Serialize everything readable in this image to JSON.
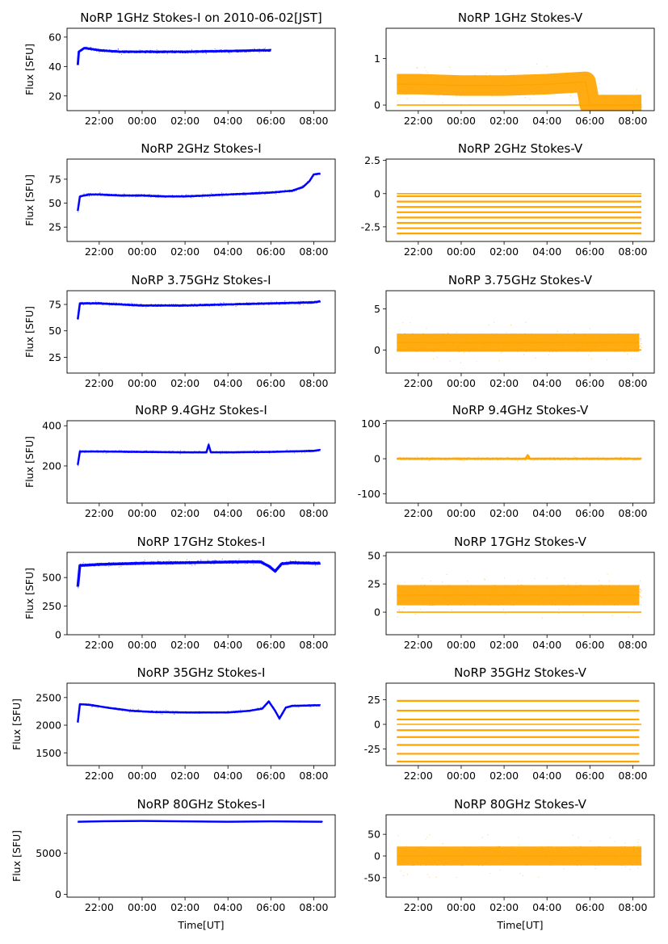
{
  "figure": {
    "xlabel": "Time[UT]",
    "time_ticks": [
      "22:00",
      "00:00",
      "02:00",
      "04:00",
      "06:00",
      "08:00"
    ]
  },
  "chart_data": [
    {
      "type": "scatter",
      "title": "NoRP 1GHz Stokes-I on 2010-06-02[JST]",
      "ylabel": "Flux [SFU]",
      "xlabel": "",
      "color": "#0000ff",
      "ylim": [
        10,
        66
      ],
      "yticks": [
        20,
        40,
        60
      ],
      "xlim": [
        20.5,
        33.0
      ],
      "x_range": [
        21.0,
        30.0
      ],
      "level": 50,
      "noise": 0.8,
      "series": [
        {
          "x": [
            21.0,
            21.05,
            21.3,
            21.6,
            22.0,
            22.5,
            23.0,
            24.0,
            26.0,
            28.0,
            29.5,
            30.0
          ],
          "y": [
            41,
            50,
            52.5,
            52,
            51,
            50.5,
            50,
            50,
            50,
            50.5,
            51,
            51
          ]
        }
      ],
      "zero_band": false,
      "offsets": []
    },
    {
      "type": "scatter",
      "title": "NoRP 1GHz Stokes-V",
      "ylabel": "",
      "xlabel": "",
      "color": "#ffa500",
      "ylim": [
        -0.12,
        1.65
      ],
      "yticks": [
        0,
        1
      ],
      "xlim": [
        20.5,
        33.0
      ],
      "x_range": [
        21.0,
        32.4
      ],
      "level": 0.42,
      "noise": 0.22,
      "series": [
        {
          "x": [
            21.0,
            22.0,
            24.0,
            26.0,
            28.0,
            29.8,
            30.0,
            32.4
          ],
          "y": [
            0.45,
            0.45,
            0.42,
            0.42,
            0.45,
            0.5,
            0,
            0
          ]
        }
      ],
      "zero_band": true,
      "offsets": []
    },
    {
      "type": "scatter",
      "title": "NoRP 2GHz Stokes-I",
      "ylabel": "Flux [SFU]",
      "xlabel": "",
      "color": "#0000ff",
      "ylim": [
        10,
        96
      ],
      "yticks": [
        25,
        50,
        75
      ],
      "xlim": [
        20.5,
        33.0
      ],
      "x_range": [
        21.0,
        32.3
      ],
      "level": 58,
      "noise": 1.0,
      "series": [
        {
          "x": [
            21.0,
            21.1,
            21.5,
            22.0,
            23.0,
            24.0,
            25.0,
            26.0,
            27.0,
            28.0,
            29.0,
            30.0,
            31.0,
            31.5,
            31.8,
            32.0,
            32.3
          ],
          "y": [
            42,
            57,
            59,
            59,
            58,
            58,
            57,
            57,
            58,
            59,
            60,
            61,
            63,
            67,
            73,
            80,
            81
          ]
        }
      ],
      "zero_band": false,
      "offsets": []
    },
    {
      "type": "scatter",
      "title": "NoRP 2GHz Stokes-V",
      "ylabel": "",
      "xlabel": "",
      "color": "#ffa500",
      "ylim": [
        -3.6,
        2.6
      ],
      "yticks": [
        -2.5,
        0.0,
        2.5
      ],
      "xlim": [
        20.5,
        33.0
      ],
      "x_range": [
        21.0,
        32.4
      ],
      "level": -1.3,
      "noise": 0,
      "series": [],
      "zero_band": true,
      "offsets": [
        -3.0,
        -2.6,
        -2.2,
        -1.8,
        -1.4,
        -1.0,
        -0.6,
        -0.2
      ]
    },
    {
      "type": "scatter",
      "title": "NoRP 3.75GHz Stokes-I",
      "ylabel": "Flux [SFU]",
      "xlabel": "",
      "color": "#0000ff",
      "ylim": [
        10,
        88
      ],
      "yticks": [
        25,
        50,
        75
      ],
      "xlim": [
        20.5,
        33.0
      ],
      "x_range": [
        21.0,
        32.3
      ],
      "level": 75,
      "noise": 1.0,
      "series": [
        {
          "x": [
            21.0,
            21.1,
            22.0,
            24.0,
            26.0,
            28.0,
            30.0,
            32.0,
            32.3
          ],
          "y": [
            61,
            76,
            76,
            74,
            74,
            75,
            76,
            77,
            78
          ]
        }
      ],
      "zero_band": false,
      "offsets": []
    },
    {
      "type": "scatter",
      "title": "NoRP 3.75GHz Stokes-V",
      "ylabel": "",
      "xlabel": "",
      "color": "#ffa500",
      "ylim": [
        -2.8,
        7.2
      ],
      "yticks": [
        0,
        5
      ],
      "xlim": [
        20.5,
        33.0
      ],
      "x_range": [
        21.0,
        32.4
      ],
      "level": 0.9,
      "noise": 1.1,
      "series": [
        {
          "x": [
            21.0,
            32.3
          ],
          "y": [
            0.9,
            0.9
          ]
        }
      ],
      "zero_band": true,
      "offsets": []
    },
    {
      "type": "scatter",
      "title": "NoRP 9.4GHz Stokes-I",
      "ylabel": "Flux [SFU]",
      "xlabel": "",
      "color": "#0000ff",
      "ylim": [
        15,
        425
      ],
      "yticks": [
        200,
        400
      ],
      "xlim": [
        20.5,
        33.0
      ],
      "x_range": [
        21.0,
        32.3
      ],
      "level": 270,
      "noise": 4,
      "series": [
        {
          "x": [
            21.0,
            21.1,
            22.0,
            24.0,
            26.0,
            27.0,
            27.1,
            27.2,
            28.0,
            30.0,
            32.0,
            32.3
          ],
          "y": [
            205,
            272,
            272,
            270,
            268,
            268,
            305,
            268,
            268,
            270,
            275,
            280
          ]
        }
      ],
      "zero_band": false,
      "offsets": []
    },
    {
      "type": "scatter",
      "title": "NoRP 9.4GHz Stokes-V",
      "ylabel": "",
      "xlabel": "",
      "color": "#ffa500",
      "ylim": [
        -126,
        108
      ],
      "yticks": [
        -100,
        0,
        100
      ],
      "xlim": [
        20.5,
        33.0
      ],
      "x_range": [
        21.0,
        32.4
      ],
      "level": 0,
      "noise": 3,
      "series": [
        {
          "x": [
            21.0,
            27.0,
            27.1,
            27.2,
            32.3
          ],
          "y": [
            0,
            0,
            10,
            0,
            0
          ]
        }
      ],
      "zero_band": true,
      "offsets": []
    },
    {
      "type": "scatter",
      "title": "NoRP 17GHz Stokes-I",
      "ylabel": "Flux [SFU]",
      "xlabel": "",
      "color": "#0000ff",
      "ylim": [
        0,
        720
      ],
      "yticks": [
        0,
        250,
        500
      ],
      "xlim": [
        20.5,
        33.0
      ],
      "x_range": [
        21.0,
        32.3
      ],
      "level": 620,
      "noise": 12,
      "series": [
        {
          "x": [
            21.0,
            21.1,
            22.0,
            24.0,
            26.0,
            28.0,
            29.5,
            29.9,
            30.2,
            30.5,
            31.0,
            32.0,
            32.3
          ],
          "y": [
            420,
            605,
            615,
            625,
            630,
            635,
            638,
            600,
            555,
            620,
            630,
            625,
            625
          ]
        }
      ],
      "zero_band": false,
      "offsets": []
    },
    {
      "type": "scatter",
      "title": "NoRP 17GHz Stokes-V",
      "ylabel": "",
      "xlabel": "",
      "color": "#ffa500",
      "ylim": [
        -20,
        53
      ],
      "yticks": [
        0,
        25,
        50
      ],
      "xlim": [
        20.5,
        33.0
      ],
      "x_range": [
        21.0,
        32.4
      ],
      "level": 15,
      "noise": 9,
      "series": [
        {
          "x": [
            21.0,
            32.3
          ],
          "y": [
            15,
            15
          ]
        }
      ],
      "zero_band": true,
      "offsets": []
    },
    {
      "type": "scatter",
      "title": "NoRP 35GHz Stokes-I",
      "ylabel": "Flux [SFU]",
      "xlabel": "",
      "color": "#0000ff",
      "ylim": [
        1270,
        2760
      ],
      "yticks": [
        1500,
        2000,
        2500
      ],
      "xlim": [
        20.5,
        33.0
      ],
      "x_range": [
        21.0,
        32.3
      ],
      "level": 2250,
      "noise": 15,
      "series": [
        {
          "x": [
            21.0,
            21.1,
            21.5,
            22.5,
            23.5,
            24.5,
            26.0,
            28.0,
            29.0,
            29.6,
            29.9,
            30.2,
            30.4,
            30.7,
            31.0,
            32.0,
            32.3
          ],
          "y": [
            2050,
            2380,
            2370,
            2310,
            2260,
            2240,
            2230,
            2230,
            2260,
            2300,
            2430,
            2260,
            2120,
            2320,
            2350,
            2360,
            2360
          ]
        }
      ],
      "zero_band": false,
      "offsets": []
    },
    {
      "type": "scatter",
      "title": "NoRP 35GHz Stokes-V",
      "ylabel": "",
      "xlabel": "",
      "color": "#ffa500",
      "ylim": [
        -42,
        42
      ],
      "yticks": [
        -25,
        0,
        25
      ],
      "xlim": [
        20.5,
        33.0
      ],
      "x_range": [
        21.0,
        32.3
      ],
      "level": 0,
      "noise": 0,
      "series": [],
      "zero_band": true,
      "offsets": [
        -38,
        -30,
        -21,
        -13,
        -6,
        5,
        14,
        24
      ]
    },
    {
      "type": "scatter",
      "title": "NoRP 80GHz Stokes-I",
      "ylabel": "Flux [SFU]",
      "xlabel": "Time[UT]",
      "color": "#0000ff",
      "ylim": [
        -350,
        9700
      ],
      "yticks": [
        0,
        5000
      ],
      "xlim": [
        20.5,
        33.0
      ],
      "x_range": [
        21.0,
        32.4
      ],
      "level": 8900,
      "noise": 40,
      "series": [
        {
          "x": [
            21.0,
            22.0,
            24.0,
            26.0,
            28.0,
            30.0,
            32.4
          ],
          "y": [
            8850,
            8900,
            8950,
            8900,
            8850,
            8900,
            8850
          ]
        }
      ],
      "zero_band": false,
      "offsets": []
    },
    {
      "type": "scatter",
      "title": "NoRP 80GHz Stokes-V",
      "ylabel": "",
      "xlabel": "Time[UT]",
      "color": "#ffa500",
      "ylim": [
        -95,
        95
      ],
      "yticks": [
        -50,
        0,
        50
      ],
      "xlim": [
        20.5,
        33.0
      ],
      "x_range": [
        21.0,
        32.4
      ],
      "level": 0,
      "noise": 22,
      "series": [
        {
          "x": [
            21.0,
            32.4
          ],
          "y": [
            0,
            0
          ]
        }
      ],
      "zero_band": false,
      "offsets": []
    }
  ]
}
